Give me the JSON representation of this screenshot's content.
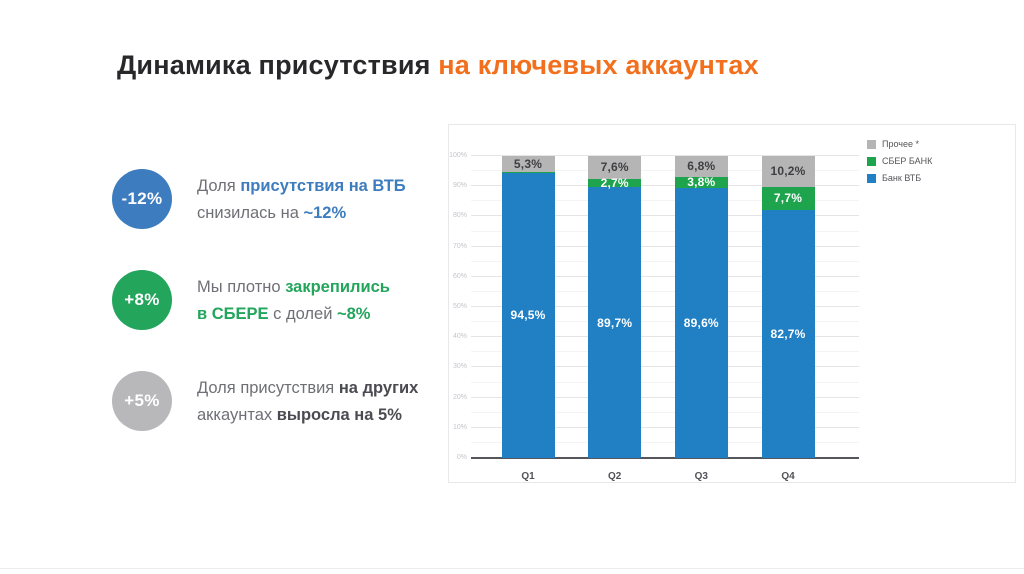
{
  "slide": {
    "title": {
      "prefix": "Динамика присутствия",
      "highlight": "на ключевых аккаунтах",
      "highlight_color": "#f2701d"
    }
  },
  "insights": [
    {
      "badge": "-12%",
      "badge_color": "#3d7cbe",
      "accent_color": "#3d7cbe",
      "segments": [
        {
          "text": "Доля ",
          "accent": false
        },
        {
          "text": "присутствия на ВТБ",
          "accent": true
        },
        {
          "text": "\nснизилась на ",
          "accent": false
        },
        {
          "text": "~12%",
          "accent": true
        }
      ]
    },
    {
      "badge": "+8%",
      "badge_color": "#23a55c",
      "accent_color": "#23a55c",
      "segments": [
        {
          "text": "Мы плотно ",
          "accent": false
        },
        {
          "text": "закрепились",
          "accent": true
        },
        {
          "text": "\n",
          "accent": false
        },
        {
          "text": "в СБЕРЕ",
          "accent": true
        },
        {
          "text": " с долей ",
          "accent": false
        },
        {
          "text": "~8%",
          "accent": true
        }
      ]
    },
    {
      "badge": "+5%",
      "badge_color": "#b8b8ba",
      "accent_color": "#4b4b52",
      "segments": [
        {
          "text": "Доля присутствия ",
          "accent": false
        },
        {
          "text": "на других",
          "accent": true
        },
        {
          "text": "\nаккаунтах ",
          "accent": false
        },
        {
          "text": "выросла на 5%",
          "accent": true
        }
      ]
    }
  ],
  "chart_data": {
    "type": "bar",
    "stacked": true,
    "title": "",
    "xlabel": "",
    "ylabel": "",
    "categories": [
      "Q1",
      "Q2",
      "Q3",
      "Q4"
    ],
    "series": [
      {
        "name": "Банк ВТБ",
        "color": "#2180c3",
        "label_color": "#ffffff",
        "values": [
          94.5,
          89.7,
          89.6,
          82.7
        ],
        "labels": [
          "94,5%",
          "89,7%",
          "89,6%",
          "82,7%"
        ]
      },
      {
        "name": "СБЕР БАНК",
        "color": "#1da44d",
        "label_color": "#ffffff",
        "values": [
          0.2,
          2.7,
          3.8,
          7.7
        ],
        "labels": [
          "",
          "2,7%",
          "3,8%",
          "7,7%"
        ]
      },
      {
        "name": "Прочее *",
        "color": "#b5b5b6",
        "label_color": "#3f3f42",
        "values": [
          5.3,
          7.6,
          6.8,
          10.2
        ],
        "labels": [
          "5,3%",
          "7,6%",
          "6,8%",
          "10,2%"
        ]
      }
    ],
    "ylim": [
      0,
      100
    ],
    "ytick_step": 10,
    "yticks": [
      "0%",
      "10%",
      "20%",
      "30%",
      "40%",
      "50%",
      "60%",
      "70%",
      "80%",
      "90%",
      "100%"
    ],
    "grid": true,
    "legend_position": "top-right"
  }
}
